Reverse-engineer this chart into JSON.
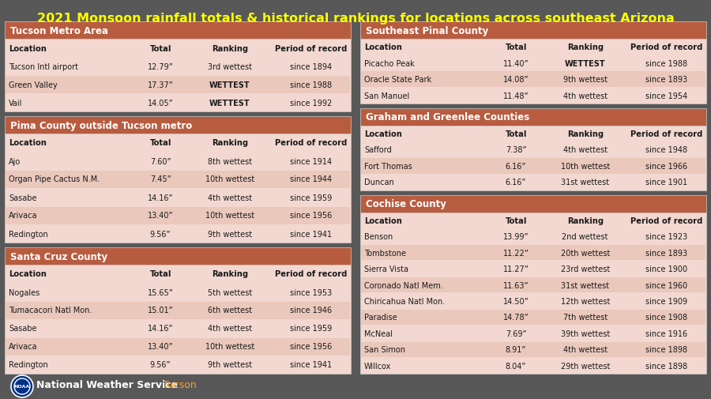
{
  "title": "2021 Monsoon rainfall totals & historical rankings for locations across southeast Arizona",
  "title_color": "#FFFF00",
  "background_color": "#606060",
  "header_bg": "#B85C40",
  "header_fg": "#FFFFFF",
  "table_bg": "#F2D8D0",
  "col_header_bg": "#E8C8BE",
  "text_color": "#1a1a1a",
  "sections_left": [
    {
      "title": "Tucson Metro Area",
      "rows": [
        [
          "Location",
          "Total",
          "Ranking",
          "Period of record"
        ],
        [
          "Tucson Intl airport",
          "12.79”",
          "3rd wettest",
          "since 1894"
        ],
        [
          "Green Valley",
          "17.37”",
          "WETTEST",
          "since 1988"
        ],
        [
          "Vail",
          "14.05”",
          "WETTEST",
          "since 1992"
        ]
      ],
      "bold_ranking": [
        false,
        false,
        true,
        true
      ]
    },
    {
      "title": "Pima County outside Tucson metro",
      "rows": [
        [
          "Location",
          "Total",
          "Ranking",
          "Period of record"
        ],
        [
          "Ajo",
          "7.60”",
          "8th wettest",
          "since 1914"
        ],
        [
          "Organ Pipe Cactus N.M.",
          "7.45”",
          "10th wettest",
          "since 1944"
        ],
        [
          "Sasabe",
          "14.16”",
          "4th wettest",
          "since 1959"
        ],
        [
          "Arivaca",
          "13.40”",
          "10th wettest",
          "since 1956"
        ],
        [
          "Redington",
          "9.56”",
          "9th wettest",
          "since 1941"
        ]
      ],
      "bold_ranking": [
        false,
        false,
        false,
        false,
        false,
        false
      ]
    },
    {
      "title": "Santa Cruz County",
      "rows": [
        [
          "Location",
          "Total",
          "Ranking",
          "Period of record"
        ],
        [
          "Nogales",
          "15.65”",
          "5th wettest",
          "since 1953"
        ],
        [
          "Tumacacori Natl Mon.",
          "15.01”",
          "6th wettest",
          "since 1946"
        ],
        [
          "Sasabe",
          "14.16”",
          "4th wettest",
          "since 1959"
        ],
        [
          "Arivaca",
          "13.40”",
          "10th wettest",
          "since 1956"
        ],
        [
          "Redington",
          "9.56”",
          "9th wettest",
          "since 1941"
        ]
      ],
      "bold_ranking": [
        false,
        false,
        false,
        false,
        false,
        false
      ]
    }
  ],
  "sections_right": [
    {
      "title": "Southeast Pinal County",
      "rows": [
        [
          "Location",
          "Total",
          "Ranking",
          "Period of record"
        ],
        [
          "Picacho Peak",
          "11.40”",
          "WETTEST",
          "since 1988"
        ],
        [
          "Oracle State Park",
          "14.08”",
          "9th wettest",
          "since 1893"
        ],
        [
          "San Manuel",
          "11.48”",
          "4th wettest",
          "since 1954"
        ]
      ],
      "bold_ranking": [
        false,
        true,
        false,
        false
      ]
    },
    {
      "title": "Graham and Greenlee Counties",
      "rows": [
        [
          "Location",
          "Total",
          "Ranking",
          "Period of record"
        ],
        [
          "Safford",
          "7.38”",
          "4th wettest",
          "since 1948"
        ],
        [
          "Fort Thomas",
          "6.16”",
          "10th wettest",
          "since 1966"
        ],
        [
          "Duncan",
          "6.16”",
          "31st wettest",
          "since 1901"
        ]
      ],
      "bold_ranking": [
        false,
        false,
        false,
        false
      ]
    },
    {
      "title": "Cochise County",
      "rows": [
        [
          "Location",
          "Total",
          "Ranking",
          "Period of record"
        ],
        [
          "Benson",
          "13.99”",
          "2nd wettest",
          "since 1923"
        ],
        [
          "Tombstone",
          "11.22”",
          "20th wettest",
          "since 1893"
        ],
        [
          "Sierra Vista",
          "11.27”",
          "23rd wettest",
          "since 1900"
        ],
        [
          "Coronado Natl Mem.",
          "11.63”",
          "31st wettest",
          "since 1960"
        ],
        [
          "Chiricahua Natl Mon.",
          "14.50”",
          "12th wettest",
          "since 1909"
        ],
        [
          "Paradise",
          "14.78”",
          "7th wettest",
          "since 1908"
        ],
        [
          "McNeal",
          "7.69”",
          "39th wettest",
          "since 1916"
        ],
        [
          "San Simon",
          "8.91”",
          "4th wettest",
          "since 1898"
        ],
        [
          "Willcox",
          "8.04”",
          "29th wettest",
          "since 1898"
        ]
      ],
      "bold_ranking": [
        false,
        false,
        false,
        false,
        false,
        false,
        false,
        false,
        false,
        false
      ]
    }
  ],
  "col_props": [
    0.37,
    0.16,
    0.24,
    0.23
  ],
  "nws_text": "National Weather Service",
  "nws_location": "Tucson"
}
